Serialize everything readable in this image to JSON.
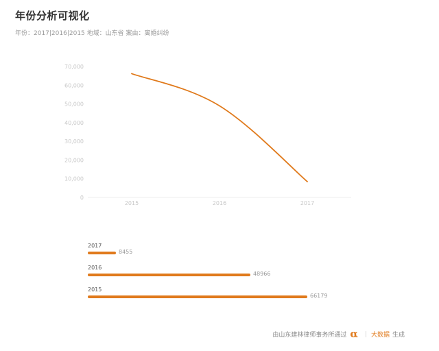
{
  "page": {
    "title": "年份分析可视化",
    "subtitle": "年份：2017|2016|2015  地域：山东省  案由：离婚纠纷"
  },
  "colors": {
    "accent": "#e07a1c",
    "grid": "#ececec",
    "tick": "#c8c8c8"
  },
  "chart_data": [
    {
      "type": "line",
      "x": [
        "2015",
        "2016",
        "2017"
      ],
      "series": [
        {
          "values": [
            66179,
            48966,
            8455
          ]
        }
      ],
      "yticks": [
        "0",
        "10,000",
        "20,000",
        "30,000",
        "40,000",
        "50,000",
        "60,000",
        "70,000"
      ],
      "ylim": [
        0,
        70000
      ],
      "grid": false,
      "smooth": true
    },
    {
      "type": "bar",
      "orientation": "horizontal",
      "categories": [
        "2017",
        "2016",
        "2015"
      ],
      "values": [
        8455,
        48966,
        66179
      ],
      "value_labels": [
        "8455",
        "48966",
        "66179"
      ]
    }
  ],
  "footer": {
    "prefix": "由山东建林律师事务所通过",
    "icon": "alpha-icon",
    "brand": "大数据",
    "suffix": "生成"
  }
}
